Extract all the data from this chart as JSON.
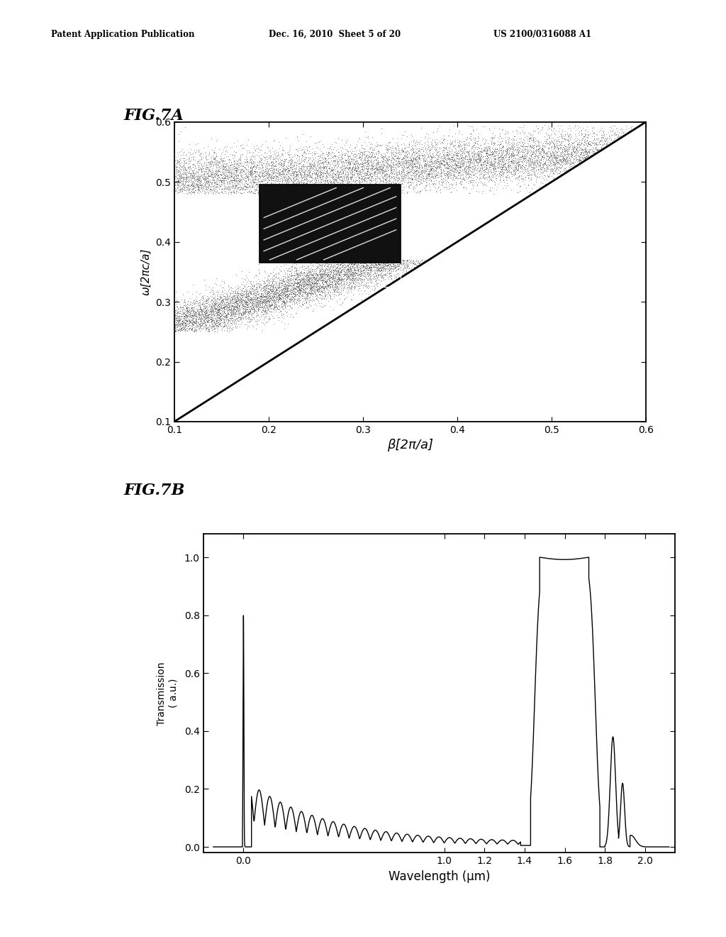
{
  "header_left": "Patent Application Publication",
  "header_mid": "Dec. 16, 2010  Sheet 5 of 20",
  "header_right": "US 2100/0316088 A1",
  "fig7a_label": "FIG.7A",
  "fig7b_label": "FIG.7B",
  "fig7a_xlabel": "β[2π/a]",
  "fig7a_ylabel": "ω[2πc/a]",
  "fig7a_xlim": [
    0.1,
    0.6
  ],
  "fig7a_ylim": [
    0.1,
    0.6
  ],
  "fig7a_xticks": [
    0.1,
    0.2,
    0.3,
    0.4,
    0.5,
    0.6
  ],
  "fig7a_yticks": [
    0.1,
    0.2,
    0.3,
    0.4,
    0.5,
    0.6
  ],
  "fig7b_xlabel": "Wavelength (μm)",
  "fig7b_ylabel": "Transmission\n( a.u.)",
  "fig7b_xlim": [
    -0.2,
    2.15
  ],
  "fig7b_ylim": [
    -0.02,
    1.08
  ],
  "fig7b_xticks": [
    0.0,
    1.0,
    1.2,
    1.4,
    1.6,
    1.8,
    2.0
  ],
  "fig7b_xtick_labels": [
    "0.0",
    "1.0",
    "1.2",
    "1.4",
    "1.6",
    "1.8",
    "2.0"
  ],
  "fig7b_yticks": [
    0.0,
    0.2,
    0.4,
    0.6,
    0.8,
    1.0
  ],
  "background_color": "#ffffff",
  "plot_color": "#000000"
}
